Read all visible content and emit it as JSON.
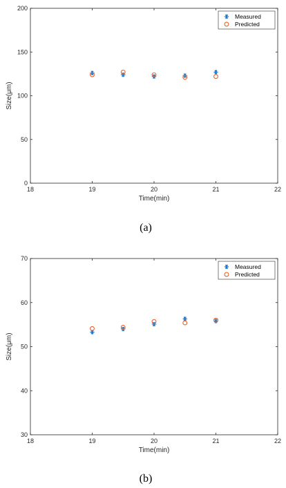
{
  "colors": {
    "measured": "#1f77c8",
    "predicted": "#e8622a",
    "axis": "#262626"
  },
  "chart_data": [
    {
      "type": "scatter",
      "caption": "(a)",
      "xlabel": "Time(min)",
      "ylabel": "Size(μm)",
      "xlim": [
        18,
        22
      ],
      "ylim": [
        0,
        200
      ],
      "xticks": [
        18,
        19,
        20,
        21,
        22
      ],
      "yticks": [
        0,
        50,
        100,
        150,
        200
      ],
      "grid": false,
      "legend": "top-right",
      "series": [
        {
          "name": "Measured",
          "marker": "asterisk",
          "x": [
            19,
            19.5,
            20,
            20.5,
            21
          ],
          "y": [
            126,
            124,
            122,
            123,
            127
          ]
        },
        {
          "name": "Predicted",
          "marker": "circle",
          "x": [
            19,
            19.5,
            20,
            20.5,
            21
          ],
          "y": [
            124,
            127,
            124,
            121,
            122
          ]
        }
      ]
    },
    {
      "type": "scatter",
      "caption": "(b)",
      "xlabel": "Time(min)",
      "ylabel": "Size(μm)",
      "xlim": [
        18,
        22
      ],
      "ylim": [
        30,
        70
      ],
      "xticks": [
        18,
        19,
        20,
        21,
        22
      ],
      "yticks": [
        30,
        40,
        50,
        60,
        70
      ],
      "grid": false,
      "legend": "top-right",
      "series": [
        {
          "name": "Measured",
          "marker": "asterisk",
          "x": [
            19,
            19.5,
            20,
            20.5,
            21
          ],
          "y": [
            53.3,
            54.0,
            55.1,
            56.3,
            55.8
          ]
        },
        {
          "name": "Predicted",
          "marker": "circle",
          "x": [
            19,
            19.5,
            20,
            20.5,
            21
          ],
          "y": [
            54.1,
            54.4,
            55.7,
            55.4,
            56.0
          ]
        }
      ]
    }
  ]
}
